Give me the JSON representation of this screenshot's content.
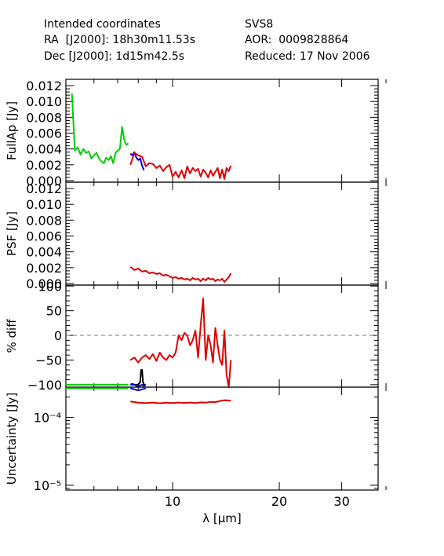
{
  "header": {
    "left": [
      "Intended coordinates",
      "RA  [J2000]: 18h30m11.53s",
      "Dec [J2000]: 1d15m42.5s"
    ],
    "right": [
      "SVS8",
      "AOR:  0009828864",
      "Reduced: 17 Nov 2006"
    ]
  },
  "colors": {
    "green": "#00cc00",
    "blue": "#0000dd",
    "red": "#dd0000",
    "black": "#000000",
    "dash": "#777777"
  },
  "chart_data": [
    {
      "type": "line",
      "ylabel": "FullAp [Jy]",
      "ylim": [
        -0.0002,
        0.0128
      ],
      "yticks": [
        "0.000",
        "0.002",
        "0.004",
        "0.006",
        "0.008",
        "0.010",
        "0.012"
      ],
      "series": [
        {
          "color": "green",
          "x": [
            5.2,
            5.3,
            5.4,
            5.5,
            5.6,
            5.7,
            5.8,
            5.9,
            6.0,
            6.1,
            6.2,
            6.3,
            6.4,
            6.5,
            6.6,
            6.7,
            6.8,
            6.9,
            7.0,
            7.1,
            7.2,
            7.3,
            7.4,
            7.5
          ],
          "y": [
            0.011,
            0.0038,
            0.0042,
            0.0033,
            0.004,
            0.0035,
            0.0037,
            0.0028,
            0.0032,
            0.0035,
            0.0028,
            0.0024,
            0.0022,
            0.0029,
            0.0026,
            0.0031,
            0.0022,
            0.0035,
            0.0038,
            0.004,
            0.0068,
            0.0052,
            0.0045,
            0.0047
          ]
        },
        {
          "color": "blue",
          "x": [
            7.6,
            7.7,
            7.8,
            7.9,
            8.0,
            8.1,
            8.2,
            8.3
          ],
          "y": [
            0.0034,
            0.0032,
            0.0036,
            0.0029,
            0.0026,
            0.0028,
            0.0019,
            0.0013
          ]
        },
        {
          "color": "red",
          "x": [
            7.6,
            7.8,
            8.0,
            8.2,
            8.4,
            8.6,
            8.8,
            9.0,
            9.2,
            9.4,
            9.6,
            9.8,
            10.0,
            10.2,
            10.4,
            10.6,
            10.8,
            11.0,
            11.2,
            11.4,
            11.6,
            11.8,
            12.0,
            12.2,
            12.4,
            12.6,
            12.8,
            13.0,
            13.2,
            13.4,
            13.6,
            13.8,
            14.0,
            14.2,
            14.4,
            14.6
          ],
          "y": [
            0.002,
            0.0035,
            0.0032,
            0.003,
            0.0018,
            0.0022,
            0.0021,
            0.0016,
            0.0019,
            0.0012,
            0.0017,
            0.002,
            0.0005,
            0.0011,
            0.0004,
            0.0013,
            0.0003,
            0.0018,
            0.0009,
            0.0016,
            0.0012,
            0.0015,
            0.0005,
            0.0014,
            0.001,
            0.0004,
            0.0013,
            0.0006,
            0.0011,
            0.0016,
            0.0003,
            0.0014,
            0.0002,
            0.0016,
            0.0012,
            0.0019
          ]
        }
      ]
    },
    {
      "type": "line",
      "ylabel": "PSF [Jy]",
      "ylim": [
        -0.0002,
        0.0128
      ],
      "yticks": [
        "0.000",
        "0.002",
        "0.004",
        "0.006",
        "0.008",
        "0.010",
        "0.012"
      ],
      "series": [
        {
          "color": "red",
          "x": [
            7.6,
            7.8,
            8.0,
            8.2,
            8.4,
            8.6,
            8.8,
            9.0,
            9.2,
            9.4,
            9.6,
            9.8,
            10.0,
            10.2,
            10.4,
            10.6,
            10.8,
            11.0,
            11.2,
            11.4,
            11.6,
            11.8,
            12.0,
            12.2,
            12.4,
            12.6,
            12.8,
            13.0,
            13.2,
            13.4,
            13.6,
            13.8,
            14.0,
            14.2,
            14.4,
            14.6
          ],
          "y": [
            0.0021,
            0.0017,
            0.0019,
            0.0015,
            0.0016,
            0.0013,
            0.0014,
            0.0012,
            0.0013,
            0.001,
            0.0011,
            0.0009,
            0.0007,
            0.0008,
            0.0006,
            0.0007,
            0.0005,
            0.0006,
            0.0004,
            0.0007,
            0.0005,
            0.0006,
            0.0003,
            0.0006,
            0.0004,
            0.0007,
            0.0005,
            0.0006,
            0.0003,
            0.0005,
            0.0004,
            0.0006,
            0.0002,
            0.0005,
            0.0008,
            0.0013
          ]
        }
      ]
    },
    {
      "type": "line",
      "ylabel": "% diff",
      "ylim": [
        -105,
        102
      ],
      "yticks": [
        "-100",
        "-50",
        "0",
        "50",
        "100"
      ],
      "reference_line": 0,
      "series": [
        {
          "color": "green",
          "x": [
            5.0,
            5.5,
            6.0,
            6.5,
            7.0,
            7.5
          ],
          "y": [
            -100,
            -100,
            -100,
            -100,
            -100,
            -100
          ]
        },
        {
          "color": "black",
          "x": [
            7.6,
            7.8,
            8.0,
            8.1,
            8.15,
            8.2,
            8.25,
            8.3,
            8.4
          ],
          "y": [
            -100,
            -100,
            -100,
            -95,
            -70,
            -70,
            -95,
            -100,
            -100
          ]
        },
        {
          "color": "blue",
          "x": [
            7.6,
            7.7,
            7.8,
            7.9,
            8.0,
            8.1,
            8.2,
            8.3,
            8.4
          ],
          "y": [
            -100,
            -98,
            -100,
            -102,
            -104,
            -102,
            -100,
            -103,
            -100
          ]
        },
        {
          "color": "red",
          "x": [
            7.6,
            7.8,
            8.0,
            8.2,
            8.4,
            8.6,
            8.8,
            9.0,
            9.2,
            9.4,
            9.6,
            9.8,
            10.0,
            10.2,
            10.4,
            10.6,
            10.8,
            11.0,
            11.2,
            11.4,
            11.6,
            11.8,
            12.0,
            12.2,
            12.4,
            12.6,
            12.8,
            13.0,
            13.2,
            13.4,
            13.6,
            13.8,
            14.0,
            14.2,
            14.4,
            14.6
          ],
          "y": [
            -50,
            -45,
            -55,
            -45,
            -40,
            -48,
            -38,
            -52,
            -35,
            -45,
            -50,
            -40,
            -45,
            -35,
            0,
            -10,
            5,
            0,
            -20,
            -10,
            10,
            -45,
            20,
            75,
            -50,
            0,
            -20,
            -55,
            15,
            -20,
            -50,
            -60,
            10,
            -80,
            -105,
            -50
          ]
        }
      ]
    },
    {
      "type": "line",
      "ylabel": "Uncertainty [Jy]",
      "yscale": "log",
      "ylim": [
        8.5e-06,
        0.00028
      ],
      "yticks": [
        {
          "value": 0.0001,
          "label": "10⁻⁴"
        },
        {
          "value": 1e-05,
          "label": "10⁻⁵"
        }
      ],
      "xlabel": "λ [μm]",
      "xscale": "log",
      "xlim": [
        5.0,
        38.0
      ],
      "xticks": [
        {
          "value": 10,
          "label": "10"
        },
        {
          "value": 20,
          "label": "20"
        },
        {
          "value": 30,
          "label": "30"
        }
      ],
      "series": [
        {
          "color": "green",
          "x": [
            5.0,
            5.5,
            6.0,
            6.5,
            7.0,
            7.5
          ],
          "y": [
            0.00027,
            0.00027,
            0.00027,
            0.00027,
            0.00027,
            0.00027
          ]
        },
        {
          "color": "blue",
          "x": [
            7.6,
            7.8,
            8.0,
            8.2,
            8.4
          ],
          "y": [
            0.00027,
            0.00026,
            0.00025,
            0.00026,
            0.00027
          ]
        },
        {
          "color": "red",
          "x": [
            7.6,
            8.0,
            8.4,
            8.8,
            9.2,
            9.6,
            10.0,
            10.4,
            10.8,
            11.2,
            11.6,
            12.0,
            12.4,
            12.8,
            13.2,
            13.6,
            14.0,
            14.4,
            14.6
          ],
          "y": [
            0.000172,
            0.000165,
            0.000163,
            0.000166,
            0.000162,
            0.000165,
            0.000163,
            0.000166,
            0.000164,
            0.000166,
            0.000163,
            0.000167,
            0.000165,
            0.00017,
            0.000168,
            0.000175,
            0.00018,
            0.000178,
            0.000176
          ]
        }
      ]
    }
  ]
}
